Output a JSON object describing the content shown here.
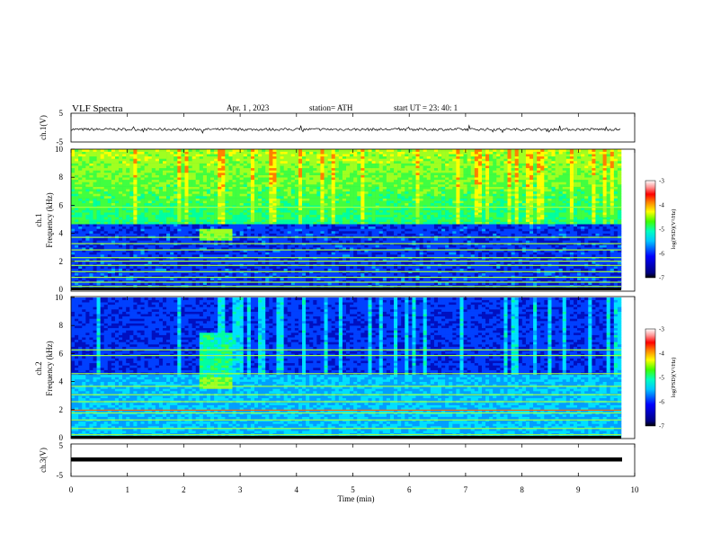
{
  "header": {
    "title": "VLF  Spectra",
    "date": "Apr. 1  , 2023",
    "station": "station= ATH",
    "start": "start  UT  =    23: 40: 1"
  },
  "chart_data": [
    {
      "type": "line",
      "ylabel": "ch.1(V)",
      "ylim": [
        -5,
        5
      ],
      "yticks": [
        "5",
        "-5"
      ],
      "description_free": true,
      "baseline_v": 0,
      "series": [
        {
          "values_note": "",
          "values": [
            0.2,
            -0.4,
            0.5,
            -0.2,
            0.1,
            -0.6,
            0.3,
            -0.1,
            0.4,
            -0.3,
            0.0,
            0.6,
            -0.5,
            0.2,
            -0.2,
            0.3,
            -0.4,
            0.1,
            0.5,
            -0.3,
            0.2,
            -0.1,
            0.4,
            -0.5,
            0.3,
            0.0,
            -0.2,
            0.4,
            -0.3,
            0.1
          ]
        }
      ]
    },
    {
      "type": "heatmap",
      "ylabel_channel": "ch.1",
      "ylabel": "Frequency  (kHz)",
      "ylim": [
        0,
        10
      ],
      "yticks": [
        "0",
        "2",
        "4",
        "6",
        "8",
        "10"
      ],
      "xlim": [
        0,
        9.8
      ],
      "colorbar": {
        "label": "log(PSD)(V²/Hz)",
        "range": [
          -7,
          -3
        ],
        "ticks": [
          "-3",
          "-4",
          "-5",
          "-6",
          "-7"
        ]
      },
      "strong_band_khz": [
        4.6,
        10
      ],
      "weak_band_khz": [
        0,
        4.6
      ],
      "burst": {
        "t_min": [
          2.25,
          2.85
        ],
        "f_khz": [
          3.5,
          4.3
        ]
      }
    },
    {
      "type": "heatmap",
      "ylabel_channel": "ch.2",
      "ylabel": "Frequency  (kHz)",
      "ylim": [
        0,
        10
      ],
      "yticks": [
        "0",
        "2",
        "4",
        "6",
        "8",
        "10"
      ],
      "xlim": [
        0,
        9.8
      ],
      "colorbar": {
        "label": "log(PSD)(V²/Hz)",
        "range": [
          -7,
          -3
        ],
        "ticks": [
          "-3",
          "-4",
          "-5",
          "-6",
          "-7"
        ]
      },
      "strong_band_khz": [
        0,
        4.4
      ],
      "burst": {
        "t_min": [
          2.25,
          2.85
        ],
        "f_khz": [
          3.5,
          4.3
        ]
      }
    },
    {
      "type": "line",
      "ylabel": "ch.3(V)",
      "ylim": [
        -5,
        5
      ],
      "yticks": [
        "5",
        "-5"
      ],
      "series": [
        {
          "values": [
            0,
            0
          ]
        }
      ]
    }
  ],
  "x_axis": {
    "label": "Time  (min)",
    "range": [
      0,
      10
    ],
    "ticks": [
      "0",
      "1",
      "2",
      "3",
      "4",
      "5",
      "6",
      "7",
      "8",
      "9",
      "10"
    ]
  },
  "colorbar_colors": [
    "#000080",
    "#0000ff",
    "#00a0ff",
    "#00ffff",
    "#00ff80",
    "#80ff00",
    "#ffff00",
    "#ff8000",
    "#ff0000",
    "#c00000",
    "#ffffff"
  ]
}
